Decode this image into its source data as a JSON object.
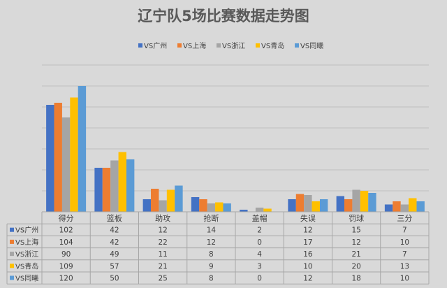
{
  "chart_data": {
    "type": "bar",
    "title": "辽宁队5场比赛数据走势图",
    "categories": [
      "得分",
      "篮板",
      "助攻",
      "抢断",
      "盖帽",
      "失误",
      "罚球",
      "三分"
    ],
    "series": [
      {
        "name": "VS广州",
        "color": "#4472c4",
        "values": [
          102,
          42,
          12,
          14,
          2,
          12,
          15,
          7
        ]
      },
      {
        "name": "VS上海",
        "color": "#ed7d31",
        "values": [
          104,
          42,
          22,
          12,
          0,
          17,
          12,
          10
        ]
      },
      {
        "name": "VS浙江",
        "color": "#a5a5a5",
        "values": [
          90,
          49,
          11,
          8,
          4,
          16,
          21,
          7
        ]
      },
      {
        "name": "VS青岛",
        "color": "#ffc000",
        "values": [
          109,
          57,
          21,
          9,
          3,
          10,
          20,
          13
        ]
      },
      {
        "name": "VS同曦",
        "color": "#5b9bd5",
        "values": [
          120,
          50,
          25,
          8,
          0,
          12,
          18,
          10
        ]
      }
    ],
    "ylim": [
      0,
      140
    ],
    "grid": true,
    "legend": "top-center",
    "data_table": true
  }
}
